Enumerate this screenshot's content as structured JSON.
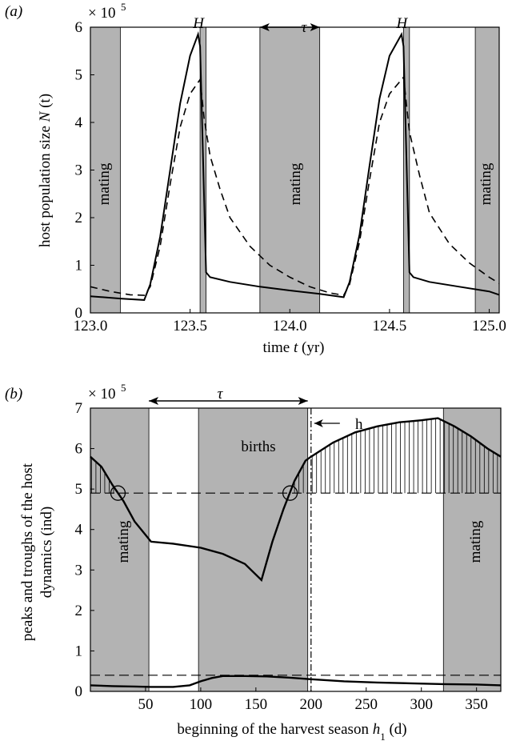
{
  "panels": [
    {
      "tag": "(a)",
      "exponent_base": "× 10",
      "exponent_power": "5",
      "xlabel_prefix": "time ",
      "xlabel_var": "t",
      "xlabel_suffix": " (yr)",
      "ylabel_prefix": "host population size ",
      "ylabel_var": "N",
      "ylabel_suffix": " (t)",
      "period_label": "τ",
      "harvest_label": "H",
      "band_label": "mating"
    },
    {
      "tag": "(b)",
      "exponent_base": "× 10",
      "exponent_power": "5",
      "xlabel_prefix": "beginning of the harvest season ",
      "xlabel_var": "h",
      "xlabel_sub": "1",
      "xlabel_suffix": " (d)",
      "ylabel_line1": "peaks and troughs of the host",
      "ylabel_line2": "dynamics (ind)",
      "period_label": "τ",
      "h_label": "h",
      "births_label": "births",
      "band_label": "mating"
    }
  ],
  "chart_data": [
    {
      "type": "line",
      "xlim": [
        123.0,
        125.05
      ],
      "ylim": [
        0,
        6
      ],
      "y_scale_note": "× 10^5",
      "xticks": [
        "123.0",
        "123.5",
        "124.0",
        "124.5",
        "125.0"
      ],
      "yticks": [
        "0",
        "1",
        "2",
        "3",
        "4",
        "5",
        "6"
      ],
      "mating_bands": [
        [
          123.0,
          123.15
        ],
        [
          123.85,
          124.15
        ],
        [
          124.93,
          125.05
        ]
      ],
      "harvest_bands": [
        [
          123.55,
          123.58
        ],
        [
          124.57,
          124.6
        ]
      ],
      "period_arrow": [
        123.85,
        124.15
      ],
      "series": [
        {
          "style": "solid",
          "x": [
            123.0,
            123.15,
            123.27,
            123.3,
            123.35,
            123.4,
            123.45,
            123.5,
            123.54,
            123.55,
            123.58,
            123.6,
            123.7,
            123.85,
            124.0,
            124.15,
            124.27,
            124.3,
            124.35,
            124.4,
            124.45,
            124.5,
            124.56,
            124.57,
            124.6,
            124.62,
            124.7,
            124.85,
            125.0,
            125.05
          ],
          "y": [
            0.35,
            0.3,
            0.27,
            0.6,
            1.6,
            3.0,
            4.4,
            5.4,
            5.85,
            5.6,
            0.85,
            0.75,
            0.65,
            0.55,
            0.47,
            0.4,
            0.33,
            0.65,
            1.65,
            3.1,
            4.5,
            5.4,
            5.85,
            5.6,
            0.85,
            0.75,
            0.65,
            0.55,
            0.45,
            0.38
          ]
        },
        {
          "style": "dashed",
          "x": [
            123.0,
            123.1,
            123.2,
            123.27,
            123.3,
            123.35,
            123.4,
            123.45,
            123.5,
            123.55,
            123.57,
            123.6,
            123.65,
            123.7,
            123.8,
            123.9,
            124.0,
            124.1,
            124.2,
            124.27,
            124.3,
            124.35,
            124.4,
            124.45,
            124.5,
            124.57,
            124.6,
            124.65,
            124.7,
            124.8,
            124.9,
            125.0,
            125.05
          ],
          "y": [
            0.55,
            0.45,
            0.38,
            0.37,
            0.55,
            1.4,
            2.7,
            3.9,
            4.6,
            4.9,
            4.1,
            3.3,
            2.6,
            2.0,
            1.4,
            1.0,
            0.75,
            0.55,
            0.42,
            0.37,
            0.6,
            1.5,
            2.8,
            4.0,
            4.6,
            4.95,
            3.8,
            2.9,
            2.1,
            1.45,
            1.05,
            0.75,
            0.62
          ]
        }
      ]
    },
    {
      "type": "line",
      "xlim": [
        0,
        372
      ],
      "ylim": [
        0,
        7
      ],
      "y_scale_note": "× 10^5",
      "xticks": [
        "50",
        "100",
        "150",
        "200",
        "250",
        "300",
        "350"
      ],
      "yticks": [
        "0",
        "1",
        "2",
        "3",
        "4",
        "5",
        "6",
        "7"
      ],
      "mating_bands": [
        [
          0,
          53
        ],
        [
          320,
          372
        ]
      ],
      "birth_band": [
        98,
        197
      ],
      "period_arrow": [
        53,
        197
      ],
      "h_line": 200,
      "reference_levels": [
        4.9,
        0.4
      ],
      "markers": [
        [
          25,
          4.9
        ],
        [
          181,
          4.9
        ]
      ],
      "series": [
        {
          "name": "peaks",
          "style": "solid",
          "x": [
            0,
            10,
            20,
            30,
            40,
            55,
            75,
            100,
            120,
            140,
            155,
            165,
            175,
            185,
            195,
            200,
            220,
            240,
            260,
            280,
            300,
            315,
            330,
            345,
            360,
            372
          ],
          "y": [
            5.8,
            5.55,
            5.1,
            4.7,
            4.2,
            3.7,
            3.65,
            3.55,
            3.4,
            3.15,
            2.75,
            3.7,
            4.5,
            5.2,
            5.7,
            5.8,
            6.15,
            6.4,
            6.55,
            6.65,
            6.7,
            6.75,
            6.55,
            6.3,
            6.0,
            5.8
          ]
        },
        {
          "name": "troughs",
          "style": "solid",
          "x": [
            0,
            20,
            40,
            55,
            75,
            90,
            100,
            110,
            120,
            140,
            160,
            180,
            200,
            230,
            260,
            290,
            320,
            350,
            372
          ],
          "y": [
            0.15,
            0.13,
            0.12,
            0.11,
            0.11,
            0.15,
            0.25,
            0.33,
            0.38,
            0.38,
            0.37,
            0.34,
            0.3,
            0.25,
            0.22,
            0.2,
            0.18,
            0.17,
            0.15
          ]
        }
      ]
    }
  ]
}
